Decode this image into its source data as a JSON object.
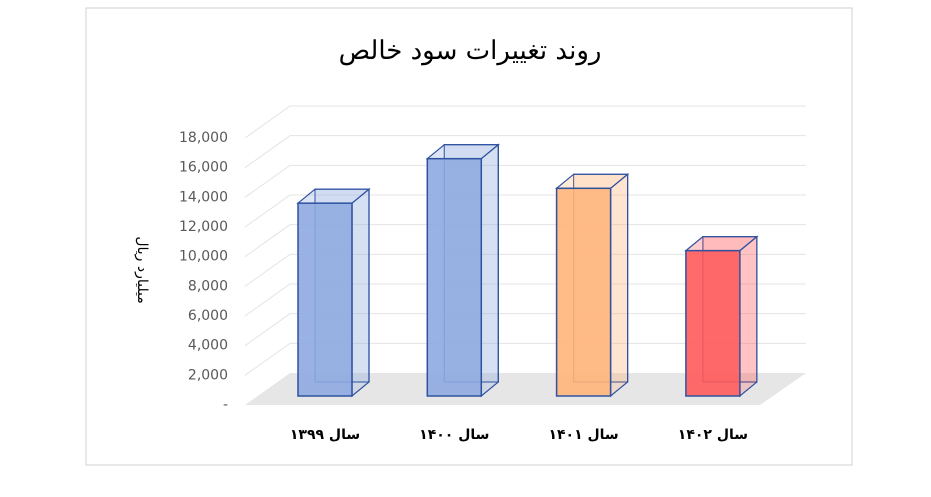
{
  "chart_data": {
    "type": "bar3d",
    "title": "روند تغییرات سود خالص",
    "y_label": "میلیارد ریال",
    "categories": [
      "سال ۱۳۹۹",
      "سال ۱۴۰۰",
      "سال ۱۴۰۱",
      "سال ۱۴۰۲"
    ],
    "values": [
      13000,
      16000,
      14000,
      9800
    ],
    "colors": [
      "#8eaae0",
      "#8eaae0",
      "#ffb57a",
      "#ff5a5a"
    ],
    "ylim": [
      0,
      18000
    ],
    "yticks": [
      {
        "value": 0,
        "label": "-"
      },
      {
        "value": 2000,
        "label": "2,000"
      },
      {
        "value": 4000,
        "label": "4,000"
      },
      {
        "value": 6000,
        "label": "6,000"
      },
      {
        "value": 8000,
        "label": "8,000"
      },
      {
        "value": 10000,
        "label": "10,000"
      },
      {
        "value": 12000,
        "label": "12,000"
      },
      {
        "value": 14000,
        "label": "14,000"
      },
      {
        "value": 16000,
        "label": "16,000"
      },
      {
        "value": 18000,
        "label": "18,000"
      }
    ],
    "grid": true
  }
}
